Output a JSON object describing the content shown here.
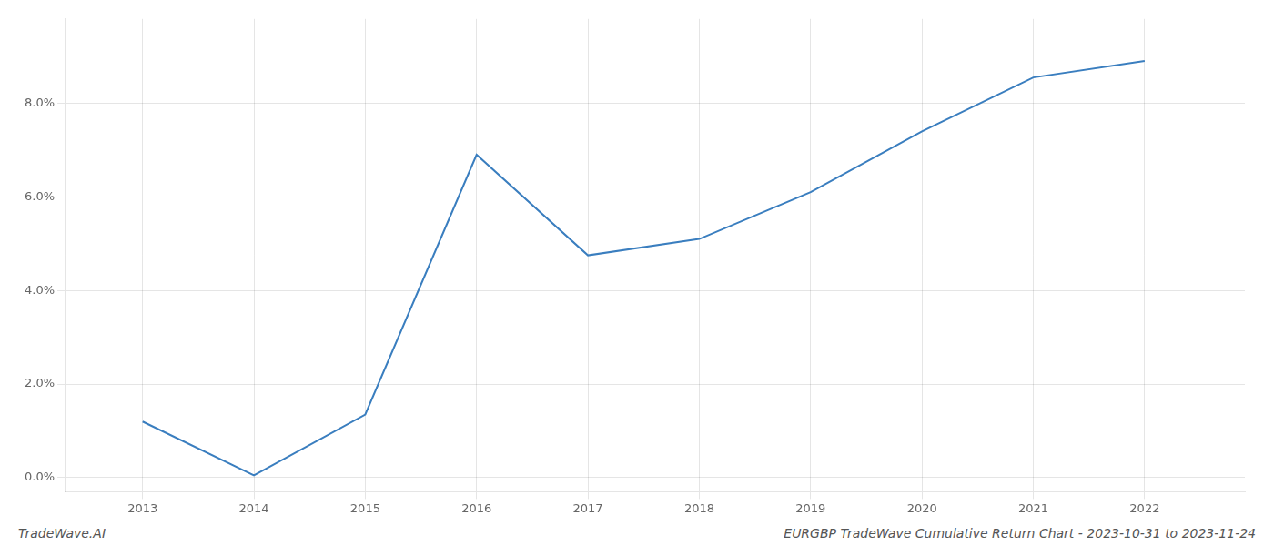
{
  "chart_data": {
    "type": "line",
    "title": "EURGBP TradeWave Cumulative Return Chart - 2023-10-31 to 2023-11-24",
    "annotations": [
      "TradeWave.AI"
    ],
    "x": [
      2013,
      2014,
      2015,
      2016,
      2017,
      2018,
      2019,
      2020,
      2021,
      2022
    ],
    "values": [
      1.2,
      0.05,
      1.35,
      6.9,
      4.75,
      5.1,
      6.1,
      7.4,
      8.55,
      8.9
    ],
    "color": "#3a7ebf",
    "xlim": [
      2012.3,
      2022.9
    ],
    "ylim": [
      -0.3,
      9.8
    ],
    "xticks": [
      2013,
      2014,
      2015,
      2016,
      2017,
      2018,
      2019,
      2020,
      2021,
      2022
    ],
    "yticks": [
      {
        "value": 0.0,
        "label": "0.0%"
      },
      {
        "value": 2.0,
        "label": "2.0%"
      },
      {
        "value": 4.0,
        "label": "4.0%"
      },
      {
        "value": 6.0,
        "label": "6.0%"
      },
      {
        "value": 8.0,
        "label": "8.0%"
      }
    ],
    "grid": true
  }
}
